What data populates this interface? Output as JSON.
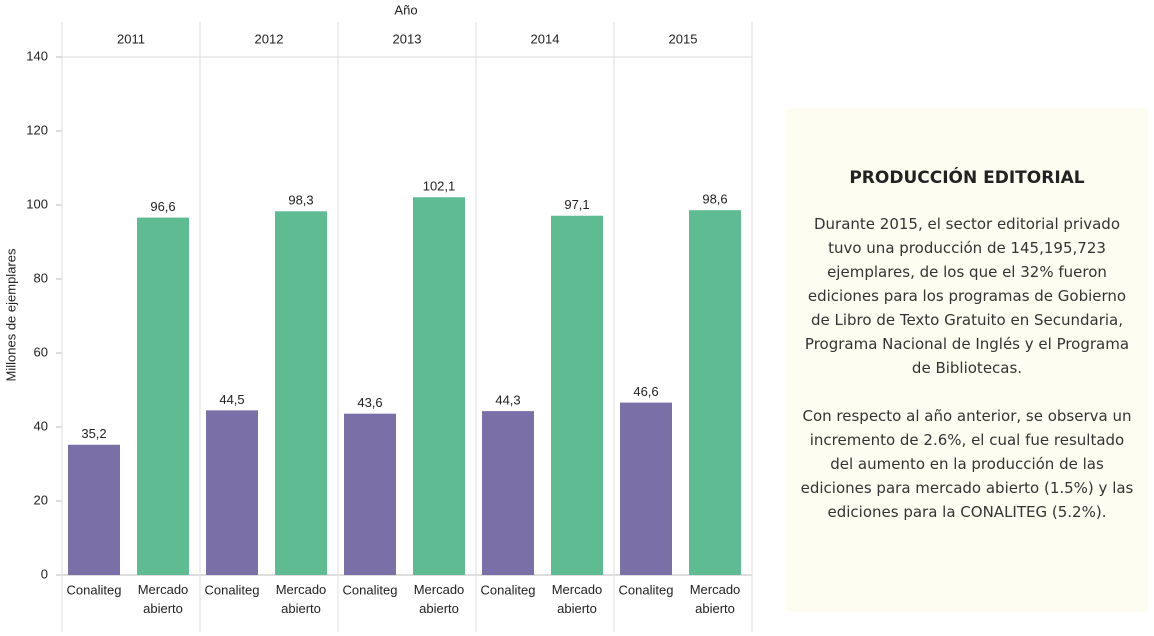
{
  "chart_data": {
    "type": "bar",
    "x_label": "Año",
    "y_label": "Millones de ejemplares",
    "groups": [
      "2011",
      "2012",
      "2013",
      "2014",
      "2015"
    ],
    "series": [
      {
        "name": "Conaliteg",
        "color": "#7b6fa8",
        "values": [
          35.2,
          44.5,
          43.6,
          44.3,
          46.6
        ],
        "value_labels": [
          "35,2",
          "44,5",
          "43,6",
          "44,3",
          "46,6"
        ]
      },
      {
        "name": "Mercado abierto",
        "color": "#5fbb92",
        "values": [
          96.6,
          98.3,
          102.1,
          97.1,
          98.6
        ],
        "value_labels": [
          "96,6",
          "98,3",
          "102,1",
          "97,1",
          "98,6"
        ]
      }
    ],
    "ylim": [
      0,
      140
    ],
    "yticks": [
      0,
      20,
      40,
      60,
      80,
      100,
      120,
      140
    ],
    "grid": false
  },
  "panel": {
    "title": "PRODUCCIÓN EDITORIAL",
    "paragraphs": [
      "Durante 2015, el sector editorial privado tuvo una producción de 145,195,723 ejemplares, de los que el 32% fueron ediciones para los programas de Gobierno de Libro de Texto Gratuito en Secundaria, Programa Nacional de Inglés  y el Programa de Bibliotecas.",
      "Con respecto al año anterior, se observa un incremento de 2.6%, el cual fue resultado del aumento en la producción de las ediciones para mercado abierto (1.5%) y las ediciones para la CONALITEG (5.2%)."
    ]
  }
}
